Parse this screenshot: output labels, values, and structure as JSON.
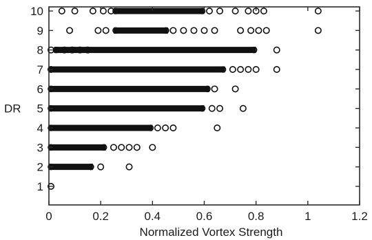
{
  "chart_data": {
    "type": "scatter",
    "xlabel": "Normalized Vortex Strength",
    "ylabel": "DR",
    "xlim": [
      0,
      1.2
    ],
    "ylim": [
      0.6,
      10.1
    ],
    "x_ticks": [
      0,
      0.2,
      0.4,
      0.6,
      0.8,
      1,
      1.2
    ],
    "x_tick_labels": [
      "0",
      "0.2",
      "0.4",
      "0.6",
      "0.8",
      "1",
      "1.2"
    ],
    "y_ticks": [
      1,
      2,
      3,
      4,
      5,
      6,
      7,
      8,
      9,
      10
    ],
    "y_tick_labels": [
      "1",
      "2",
      "3",
      "4",
      "5",
      "6",
      "7",
      "8",
      "9",
      "10"
    ],
    "grid": false,
    "marker": "open-circle",
    "dense_ranges": [
      {
        "y": 10,
        "x_min": 0.25,
        "x_max": 0.6
      },
      {
        "y": 9,
        "x_min": 0.25,
        "x_max": 0.46
      },
      {
        "y": 8,
        "x_min": 0.02,
        "x_max": 0.8
      },
      {
        "y": 7,
        "x_min": 0.0,
        "x_max": 0.68
      },
      {
        "y": 6,
        "x_min": 0.0,
        "x_max": 0.62
      },
      {
        "y": 5,
        "x_min": 0.0,
        "x_max": 0.6
      },
      {
        "y": 4,
        "x_min": 0.0,
        "x_max": 0.4
      },
      {
        "y": 3,
        "x_min": 0.0,
        "x_max": 0.22
      },
      {
        "y": 2,
        "x_min": 0.0,
        "x_max": 0.17
      }
    ],
    "points": [
      {
        "y": 10,
        "x": [
          0.05,
          0.1,
          0.17,
          0.21,
          0.24,
          0.62,
          0.66,
          0.72,
          0.77,
          0.8,
          0.83,
          1.04
        ]
      },
      {
        "y": 9,
        "x": [
          0.08,
          0.19,
          0.22,
          0.48,
          0.52,
          0.56,
          0.6,
          0.64,
          0.74,
          0.78,
          0.81,
          0.84,
          1.04
        ]
      },
      {
        "y": 8,
        "x": [
          0.0,
          0.06,
          0.09,
          0.12,
          0.15,
          0.88
        ]
      },
      {
        "y": 7,
        "x": [
          0.0,
          0.71,
          0.74,
          0.77,
          0.8,
          0.88
        ]
      },
      {
        "y": 6,
        "x": [
          0.64,
          0.72
        ]
      },
      {
        "y": 5,
        "x": [
          0.63,
          0.66,
          0.75
        ]
      },
      {
        "y": 4,
        "x": [
          0.42,
          0.45,
          0.48,
          0.65
        ]
      },
      {
        "y": 3,
        "x": [
          0.25,
          0.28,
          0.31,
          0.34,
          0.4
        ]
      },
      {
        "y": 2,
        "x": [
          0.2,
          0.31
        ]
      },
      {
        "y": 1,
        "x": [
          0.0
        ]
      }
    ]
  }
}
